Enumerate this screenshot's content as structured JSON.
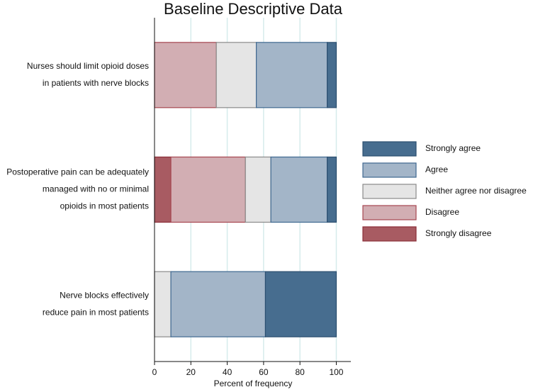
{
  "chart_data": {
    "type": "stacked-barh",
    "title": "Baseline Descriptive Data",
    "xlabel": "Percent of frequency",
    "categories": [
      [
        "Nurses should limit opioid doses",
        "in patients with nerve blocks"
      ],
      [
        "Postoperative pain can be adequately",
        "managed with no or minimal",
        "opioids in most patients"
      ],
      [
        "Nerve blocks effectively",
        "reduce pain in most patients"
      ]
    ],
    "series": [
      {
        "name": "Strongly disagree",
        "color": "#a85b62",
        "edgecolor": "#8b2e38",
        "values": [
          0,
          9,
          0
        ]
      },
      {
        "name": "Disagree",
        "color": "#d2aeb3",
        "edgecolor": "#a64650",
        "values": [
          34,
          41,
          0
        ]
      },
      {
        "name": "Neither agree nor disagree",
        "color": "#e5e5e5",
        "edgecolor": "#8a8a8a",
        "values": [
          22,
          14,
          9
        ]
      },
      {
        "name": "Agree",
        "color": "#a3b5c8",
        "edgecolor": "#3f6890",
        "values": [
          39,
          31,
          52
        ]
      },
      {
        "name": "Strongly agree",
        "color": "#476d8f",
        "edgecolor": "#2c4f70",
        "values": [
          5,
          5,
          39
        ]
      }
    ],
    "xlim": [
      0,
      108
    ],
    "xticks": [
      0,
      20,
      40,
      60,
      80,
      100
    ],
    "grid": true,
    "grid_color": "#d6ecec",
    "legend": "right"
  }
}
